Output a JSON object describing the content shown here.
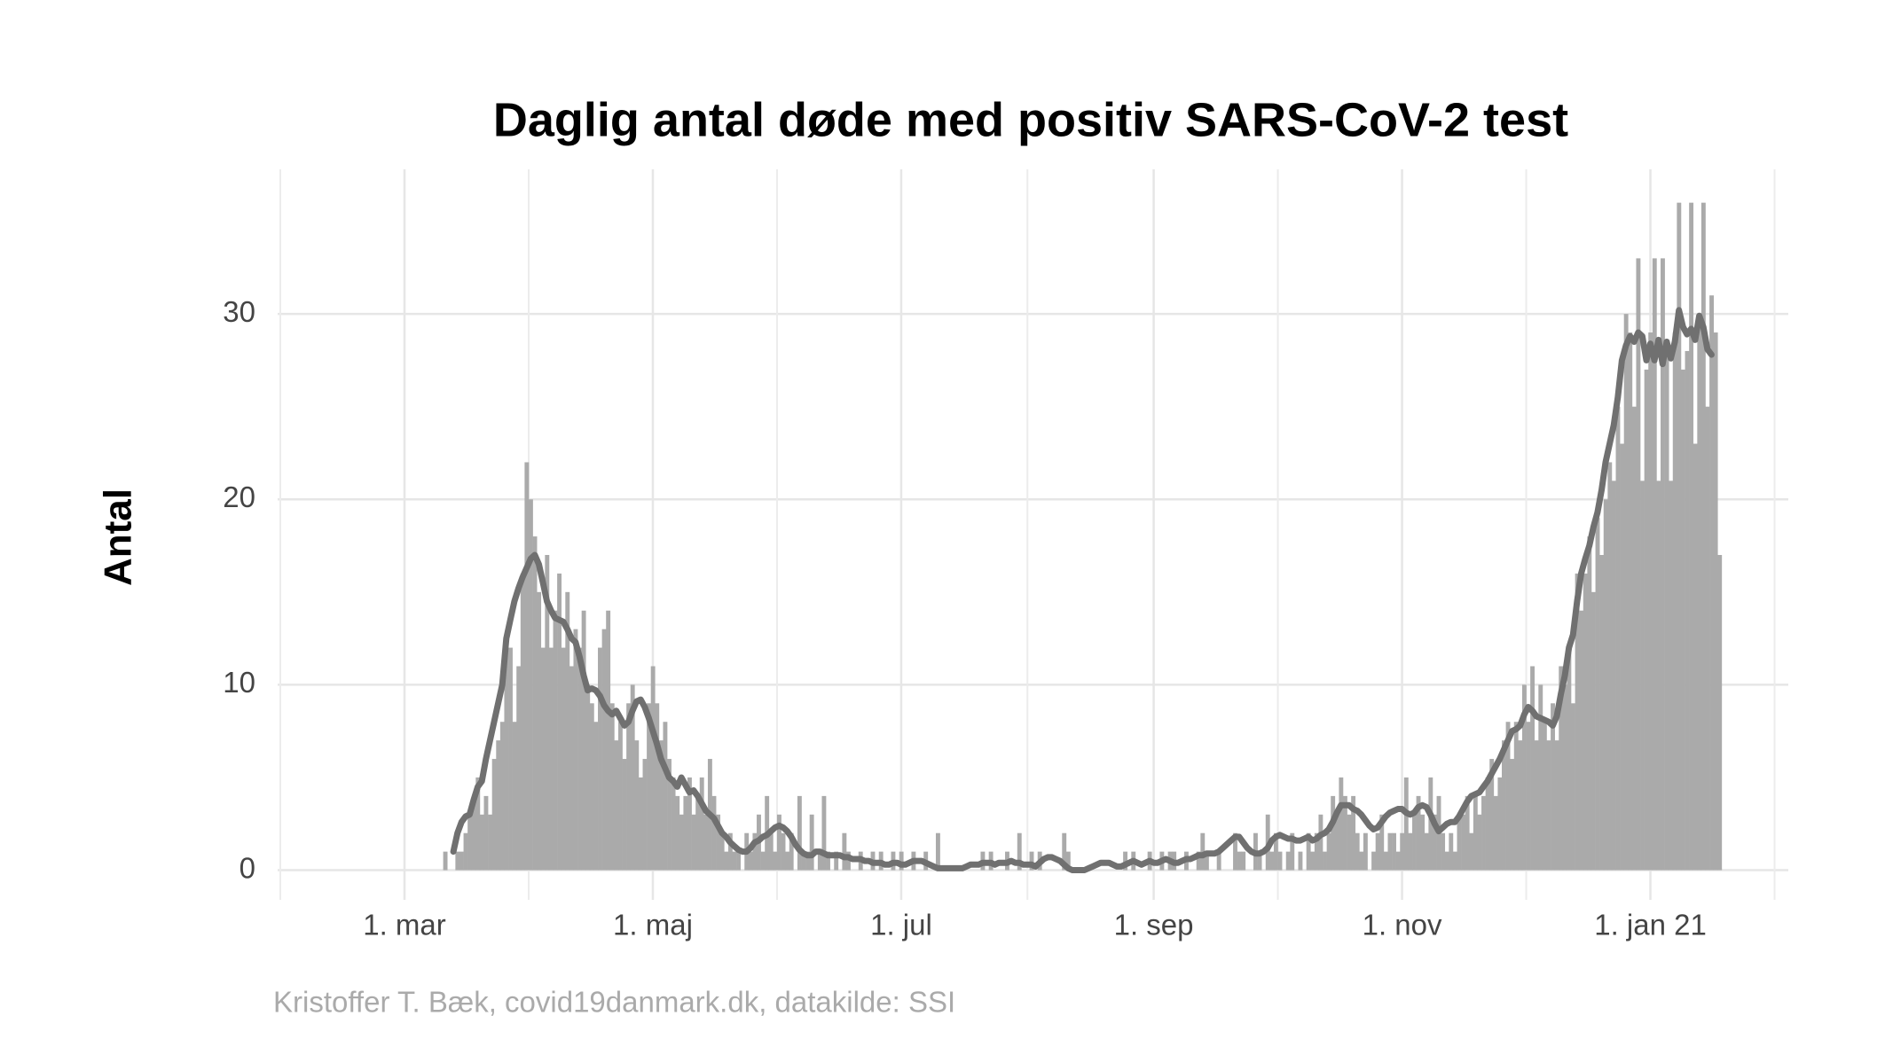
{
  "chart_data": {
    "type": "bar",
    "title": "Daglig antal døde med positiv SARS-CoV-2 test",
    "y_label": "Antal",
    "caption": "Kristoffer T. Bæk, covid19danmark.dk, datakilde: SSI",
    "ylim": [
      -1.6,
      37.8
    ],
    "yticks": [
      0,
      10,
      20,
      30
    ],
    "grid": true,
    "categories": [
      "1. mar",
      null,
      null,
      null,
      null,
      null,
      null,
      null,
      null,
      null,
      null,
      null,
      null,
      null,
      null,
      null,
      null,
      null,
      null,
      null,
      null,
      null,
      null,
      null,
      null,
      null,
      null,
      null,
      null,
      null,
      null,
      null,
      null,
      null,
      null,
      null,
      null,
      null,
      null,
      null,
      null,
      null,
      null,
      null,
      null,
      null,
      null,
      null,
      null,
      null,
      null,
      null,
      null,
      null,
      null,
      null,
      null,
      null,
      null,
      null,
      null,
      "1. maj",
      null,
      null,
      null,
      null,
      null,
      null,
      null,
      null,
      null,
      null,
      null,
      null,
      null,
      null,
      null,
      null,
      null,
      null,
      null,
      null,
      null,
      null,
      null,
      null,
      null,
      null,
      null,
      null,
      null,
      null,
      null,
      null,
      null,
      null,
      null,
      null,
      null,
      null,
      null,
      null,
      null,
      null,
      null,
      null,
      null,
      null,
      null,
      null,
      null,
      null,
      null,
      null,
      null,
      null,
      null,
      null,
      null,
      null,
      null,
      null,
      "1. jul",
      null,
      null,
      null,
      null,
      null,
      null,
      null,
      null,
      null,
      null,
      null,
      null,
      null,
      null,
      null,
      null,
      null,
      null,
      null,
      null,
      null,
      null,
      null,
      null,
      null,
      null,
      null,
      null,
      null,
      null,
      null,
      null,
      null,
      null,
      null,
      null,
      null,
      null,
      null,
      null,
      null,
      null,
      null,
      null,
      null,
      null,
      null,
      null,
      null,
      null,
      null,
      null,
      null,
      null,
      null,
      null,
      null,
      null,
      null,
      null,
      null,
      "1. sep",
      null,
      null,
      null,
      null,
      null,
      null,
      null,
      null,
      null,
      null,
      null,
      null,
      null,
      null,
      null,
      null,
      null,
      null,
      null,
      null,
      null,
      null,
      null,
      null,
      null,
      null,
      null,
      null,
      null,
      null,
      null,
      null,
      null,
      null,
      null,
      null,
      null,
      null,
      null,
      null,
      null,
      null,
      null,
      null,
      null,
      null,
      null,
      null,
      null,
      null,
      null,
      null,
      null,
      null,
      null,
      null,
      null,
      null,
      null,
      null,
      "1. nov",
      null,
      null,
      null,
      null,
      null,
      null,
      null,
      null,
      null,
      null,
      null,
      null,
      null,
      null,
      null,
      null,
      null,
      null,
      null,
      null,
      null,
      null,
      null,
      null,
      null,
      null,
      null,
      null,
      null,
      null,
      null,
      null,
      null,
      null,
      null,
      null,
      null,
      null,
      null,
      null,
      null,
      null,
      null,
      null,
      null,
      null,
      null,
      null,
      null,
      null,
      null,
      null,
      null,
      null,
      null,
      null,
      null,
      null,
      null,
      null,
      "1. jan 21",
      null,
      null,
      null,
      null,
      null,
      null,
      null,
      null,
      null,
      null,
      null,
      null,
      null,
      null,
      null,
      null,
      null
    ],
    "series": [
      {
        "type": "bar",
        "color": "#aaaaaa",
        "values": [
          null,
          null,
          null,
          null,
          null,
          null,
          null,
          null,
          null,
          null,
          1,
          0,
          0,
          1,
          1,
          2,
          3,
          4,
          5,
          3,
          4,
          3,
          6,
          7,
          8,
          12,
          12,
          8,
          11,
          16,
          22,
          20,
          18,
          15,
          12,
          17,
          12,
          14,
          16,
          12,
          15,
          11,
          13,
          12,
          14,
          10,
          9,
          8,
          12,
          13,
          14,
          9,
          7,
          8,
          6,
          9,
          10,
          7,
          5,
          6,
          9,
          11,
          9,
          7,
          8,
          6,
          5,
          4,
          3,
          4,
          5,
          3,
          4,
          5,
          3,
          6,
          4,
          3,
          2,
          1,
          2,
          1,
          1,
          0,
          2,
          1,
          2,
          3,
          1,
          4,
          2,
          1,
          3,
          2,
          1,
          2,
          0,
          4,
          1,
          1,
          3,
          0,
          1,
          4,
          1,
          0,
          1,
          0,
          2,
          1,
          0,
          0,
          1,
          0,
          0,
          1,
          0,
          1,
          0,
          0,
          1,
          0,
          1,
          0,
          0,
          1,
          0,
          0,
          1,
          0,
          0,
          2,
          0,
          0,
          0,
          0,
          0,
          0,
          0,
          0,
          0,
          0,
          1,
          0,
          1,
          0,
          0,
          0,
          1,
          0,
          0,
          2,
          0,
          0,
          1,
          0,
          1,
          0,
          0,
          0,
          0,
          0,
          2,
          1,
          0,
          0,
          0,
          0,
          0,
          0,
          0,
          0,
          0,
          0,
          0,
          0,
          0,
          1,
          0,
          1,
          0,
          0,
          0,
          1,
          0,
          0,
          1,
          0,
          1,
          1,
          0,
          0,
          1,
          0,
          0,
          1,
          2,
          1,
          0,
          0,
          1,
          0,
          0,
          0,
          2,
          1,
          1,
          0,
          0,
          2,
          1,
          0,
          3,
          1,
          2,
          1,
          0,
          1,
          2,
          0,
          1,
          0,
          2,
          1,
          2,
          3,
          1,
          2,
          4,
          3,
          5,
          4,
          3,
          4,
          2,
          1,
          2,
          0,
          1,
          2,
          3,
          1,
          2,
          2,
          1,
          2,
          5,
          2,
          3,
          4,
          3,
          2,
          5,
          3,
          4,
          2,
          1,
          2,
          1,
          3,
          3,
          4,
          2,
          4,
          3,
          4,
          5,
          6,
          4,
          5,
          7,
          8,
          6,
          8,
          7,
          10,
          8,
          11,
          7,
          10,
          8,
          7,
          9,
          7,
          11,
          10,
          12,
          9,
          16,
          14,
          16,
          18,
          15,
          19,
          17,
          20,
          22,
          21,
          25,
          23,
          30,
          29,
          25,
          33,
          21,
          27,
          29,
          33,
          21,
          33,
          28,
          21,
          29,
          36,
          27,
          28,
          36,
          23,
          30,
          36,
          25,
          31,
          29,
          17
        ]
      },
      {
        "type": "line",
        "color": "#707070",
        "values": [
          null,
          null,
          null,
          null,
          null,
          null,
          null,
          null,
          null,
          null,
          null,
          null,
          1,
          2,
          2.6,
          2.9,
          3,
          3.8,
          4.5,
          4.8,
          6,
          7,
          8,
          9,
          10,
          12.5,
          13.5,
          14.5,
          15.2,
          15.8,
          16.3,
          16.8,
          17,
          16.5,
          15.5,
          14.5,
          14,
          13.6,
          13.5,
          13.4,
          13,
          12.5,
          12.3,
          11.5,
          10.5,
          9.7,
          9.8,
          9.7,
          9.4,
          8.9,
          8.6,
          8.4,
          8.6,
          8.2,
          7.8,
          8,
          8.6,
          9.1,
          9.2,
          8.8,
          8.2,
          7.5,
          6.8,
          6,
          5.5,
          5,
          4.8,
          4.5,
          5,
          4.6,
          4.2,
          4.3,
          4,
          3.6,
          3.2,
          3,
          2.8,
          2.4,
          2,
          1.8,
          1.5,
          1.3,
          1.1,
          1,
          1,
          1.2,
          1.5,
          1.6,
          1.8,
          1.9,
          2.1,
          2.3,
          2.4,
          2.3,
          2.1,
          1.8,
          1.4,
          1.1,
          0.9,
          0.8,
          0.8,
          1,
          1,
          0.9,
          0.8,
          0.8,
          0.8,
          0.8,
          0.7,
          0.7,
          0.6,
          0.6,
          0.6,
          0.5,
          0.5,
          0.4,
          0.4,
          0.4,
          0.3,
          0.3,
          0.4,
          0.4,
          0.3,
          0.3,
          0.4,
          0.5,
          0.5,
          0.5,
          0.4,
          0.3,
          0.2,
          0.1,
          0.1,
          0.1,
          0.1,
          0.1,
          0.1,
          0.1,
          0.2,
          0.3,
          0.3,
          0.3,
          0.4,
          0.4,
          0.4,
          0.3,
          0.4,
          0.4,
          0.4,
          0.5,
          0.4,
          0.4,
          0.3,
          0.3,
          0.3,
          0.2,
          0.4,
          0.6,
          0.7,
          0.7,
          0.6,
          0.5,
          0.3,
          0.1,
          0,
          0,
          0,
          0,
          0.1,
          0.2,
          0.3,
          0.4,
          0.4,
          0.4,
          0.3,
          0.2,
          0.2,
          0.3,
          0.4,
          0.5,
          0.4,
          0.3,
          0.4,
          0.5,
          0.4,
          0.4,
          0.5,
          0.6,
          0.5,
          0.4,
          0.4,
          0.5,
          0.6,
          0.6,
          0.7,
          0.8,
          0.8,
          0.9,
          0.9,
          0.9,
          1,
          1.2,
          1.4,
          1.6,
          1.8,
          1.8,
          1.5,
          1.2,
          1,
          0.9,
          0.9,
          1,
          1.2,
          1.6,
          1.8,
          1.9,
          1.8,
          1.7,
          1.7,
          1.6,
          1.6,
          1.7,
          1.8,
          1.6,
          1.7,
          1.9,
          2,
          2.2,
          2.6,
          3.1,
          3.5,
          3.5,
          3.5,
          3.3,
          3.2,
          3,
          2.7,
          2.4,
          2.2,
          2.3,
          2.6,
          2.9,
          3.1,
          3.2,
          3.3,
          3.3,
          3.1,
          3,
          3.1,
          3.4,
          3.5,
          3.4,
          3,
          2.5,
          2.1,
          2.3,
          2.5,
          2.6,
          2.6,
          2.9,
          3.3,
          3.7,
          4,
          4.1,
          4.2,
          4.5,
          4.8,
          5.2,
          5.6,
          6,
          6.5,
          7,
          7.5,
          7.6,
          7.8,
          8.4,
          8.8,
          8.6,
          8.3,
          8.2,
          8.1,
          8,
          7.8,
          8.3,
          9.5,
          10.5,
          12,
          12.7,
          14.5,
          16,
          16.8,
          17.5,
          18.5,
          19.3,
          20.5,
          22,
          23,
          24,
          25.5,
          27.5,
          28.3,
          28.8,
          28.5,
          29,
          28.8,
          27.5,
          28.4,
          27.5,
          28.6,
          27.3,
          28.5,
          27.6,
          28.5,
          30.2,
          29.3,
          28.9,
          29.2,
          28.6,
          29.9,
          29.3,
          28.1,
          27.8,
          null,
          null
        ]
      }
    ]
  }
}
